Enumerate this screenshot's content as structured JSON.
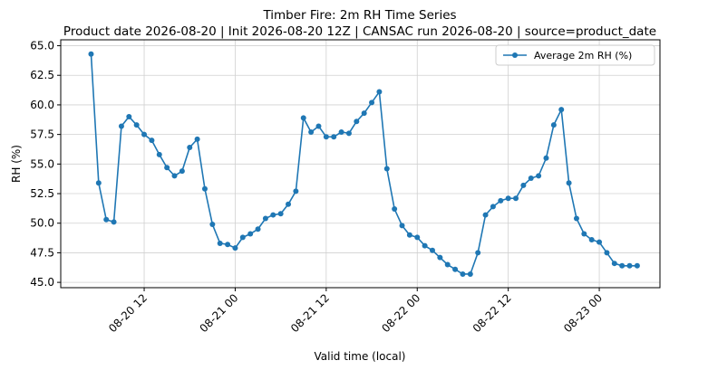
{
  "chart_data": {
    "type": "line",
    "title": "Timber Fire: 2m RH Time Series",
    "subtitle": "Product date 2026-08-20 | Init 2026-08-20 12Z | CANSAC run 2026-08-20 | source=product_date",
    "x_label": "Valid time (local)",
    "y_label": "RH (%)",
    "x": [
      "08-20 05",
      "08-20 06",
      "08-20 07",
      "08-20 08",
      "08-20 09",
      "08-20 10",
      "08-20 11",
      "08-20 12",
      "08-20 13",
      "08-20 14",
      "08-20 15",
      "08-20 16",
      "08-20 17",
      "08-20 18",
      "08-20 19",
      "08-20 20",
      "08-20 21",
      "08-20 22",
      "08-20 23",
      "08-21 00",
      "08-21 01",
      "08-21 02",
      "08-21 03",
      "08-21 04",
      "08-21 05",
      "08-21 06",
      "08-21 07",
      "08-21 08",
      "08-21 09",
      "08-21 10",
      "08-21 11",
      "08-21 12",
      "08-21 13",
      "08-21 14",
      "08-21 15",
      "08-21 16",
      "08-21 17",
      "08-21 18",
      "08-21 19",
      "08-21 20",
      "08-21 21",
      "08-21 22",
      "08-21 23",
      "08-22 00",
      "08-22 01",
      "08-22 02",
      "08-22 03",
      "08-22 04",
      "08-22 05",
      "08-22 06",
      "08-22 07",
      "08-22 08",
      "08-22 09",
      "08-22 10",
      "08-22 11",
      "08-22 12",
      "08-22 13",
      "08-22 14",
      "08-22 15",
      "08-22 16",
      "08-22 17",
      "08-22 18",
      "08-22 19",
      "08-22 20",
      "08-22 21",
      "08-22 22",
      "08-22 23",
      "08-23 00",
      "08-23 01",
      "08-23 02",
      "08-23 03",
      "08-23 04",
      "08-23 05"
    ],
    "series": [
      {
        "name": "Average 2m RH (%)",
        "color": "#1f77b4",
        "values": [
          64.3,
          53.4,
          50.3,
          50.1,
          58.2,
          59.0,
          58.3,
          57.5,
          57.0,
          55.8,
          54.7,
          54.0,
          54.4,
          56.4,
          57.1,
          52.9,
          49.9,
          48.3,
          48.2,
          47.9,
          48.8,
          49.1,
          49.5,
          50.4,
          50.7,
          50.8,
          51.6,
          52.7,
          58.9,
          57.7,
          58.2,
          57.3,
          57.3,
          57.7,
          57.6,
          58.6,
          59.3,
          60.2,
          61.1,
          54.6,
          51.2,
          49.8,
          49.0,
          48.8,
          48.1,
          47.7,
          47.1,
          46.5,
          46.1,
          45.7,
          45.7,
          47.5,
          50.7,
          51.4,
          51.9,
          52.1,
          52.1,
          53.2,
          53.8,
          54.0,
          55.5,
          58.3,
          59.6,
          53.4,
          50.4,
          49.1,
          48.6,
          48.4,
          47.5,
          46.6,
          46.4,
          46.4,
          46.4
        ]
      }
    ],
    "xlim": [
      "08-20 01",
      "08-23 08"
    ],
    "xticks": [
      "08-20 12",
      "08-21 00",
      "08-21 12",
      "08-22 00",
      "08-22 12",
      "08-23 00"
    ],
    "ylim": [
      44.55,
      65.5
    ],
    "yticks": [
      {
        "value": 45,
        "label": "45.0"
      },
      47.5,
      {
        "value": 50,
        "label": "50.0"
      },
      52.5,
      {
        "value": 55,
        "label": "55.0"
      },
      57.5,
      {
        "value": 60,
        "label": "60.0"
      },
      62.5,
      {
        "value": 65,
        "label": "65.0"
      }
    ],
    "grid": true,
    "legend": "upper right"
  }
}
